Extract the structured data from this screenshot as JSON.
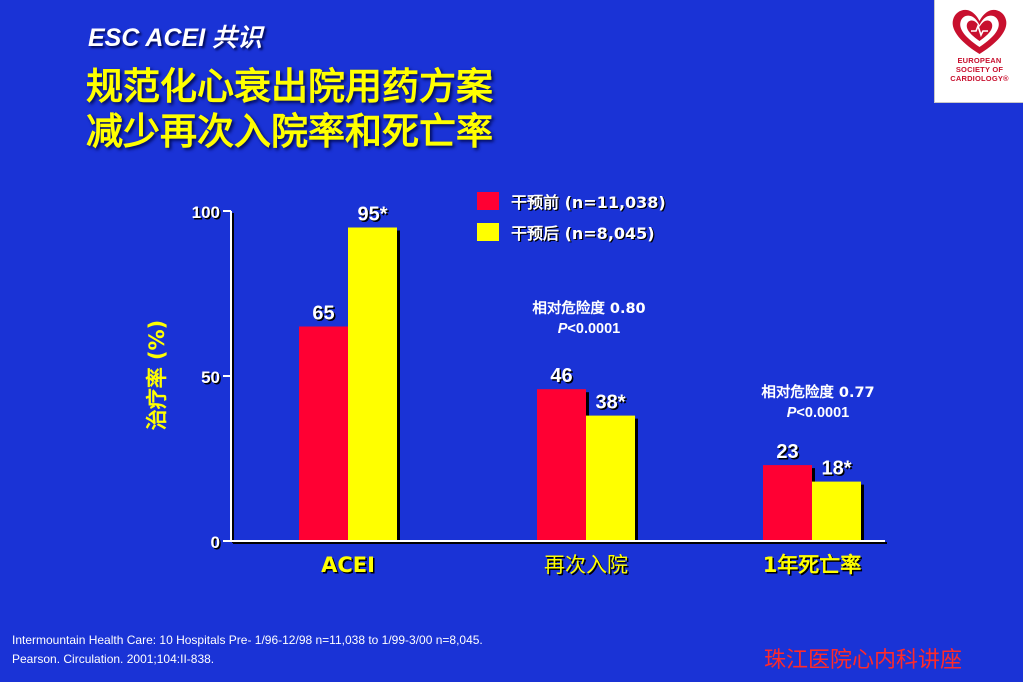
{
  "slide": {
    "subtitle": "ESC ACEI 共识",
    "title_line1": "规范化心衰出院用药方案",
    "title_line2": "减少再次入院率和死亡率"
  },
  "logo": {
    "icon": "heart-icon",
    "line1": "EUROPEAN",
    "line2": "SOCIETY OF",
    "line3": "CARDIOLOGY®",
    "color": "#c8102e"
  },
  "chart_data": {
    "type": "bar",
    "categories": [
      "ACEI",
      "再次入院",
      "1年死亡率"
    ],
    "ylabel": "治疗率 (%)",
    "ylim": [
      0,
      100
    ],
    "yticks": [
      0,
      50,
      100
    ],
    "series": [
      {
        "name": "干预前 (n=11,038)",
        "color": "#ff0033",
        "values": [
          65,
          46,
          23
        ],
        "labels": [
          "65",
          "46",
          "23"
        ]
      },
      {
        "name": "干预后 (n=8,045)",
        "color": "#ffff00",
        "values": [
          95,
          38,
          18
        ],
        "labels": [
          "95*",
          "38*",
          "18*"
        ]
      }
    ],
    "annotations": [
      {
        "category": 1,
        "line1": "相对危险度 0.80",
        "line2": "P<0.0001"
      },
      {
        "category": 2,
        "line1": "相对危险度 0.77",
        "line2": "P<0.0001"
      }
    ],
    "legend_position": "top-right"
  },
  "footer": {
    "line1": "Intermountain Health Care: 10 Hospitals Pre- 1/96-12/98 n=11,038 to 1/99-3/00 n=8,045.",
    "line2": "Pearson. Circulation. 2001;104:II-838.",
    "lecture": "珠江医院心内科讲座"
  }
}
